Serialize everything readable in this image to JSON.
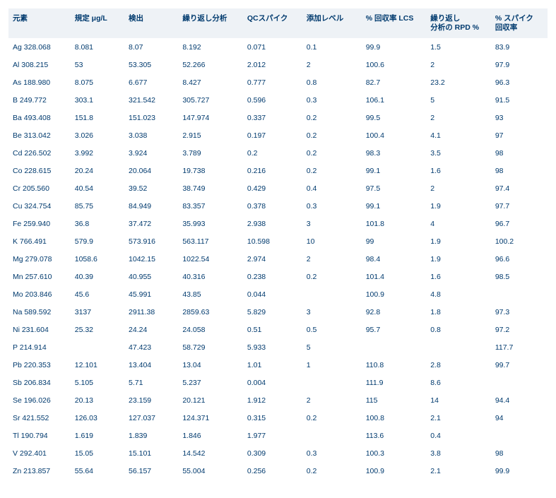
{
  "table": {
    "type": "table",
    "text_color": "#003a6e",
    "header_bg": "#eef2f6",
    "row_bg": "#ffffff",
    "header_fontsize": 10.5,
    "cell_fontsize": 10.5,
    "columns": [
      {
        "label": "元素",
        "width_pct": 11.5
      },
      {
        "label": "規定 μg/L",
        "width_pct": 10
      },
      {
        "label": "検出",
        "width_pct": 10
      },
      {
        "label": "繰り返し分析",
        "width_pct": 12
      },
      {
        "label": "QCスパイク",
        "width_pct": 11
      },
      {
        "label": "添加レベル",
        "width_pct": 11
      },
      {
        "label": "% 回収率 LCS",
        "width_pct": 12
      },
      {
        "label": "繰り返し\n分析の RPD %",
        "width_pct": 12
      },
      {
        "label": "% スパイク\n回収率",
        "width_pct": 10.5
      }
    ],
    "rows": [
      [
        "Ag 328.068",
        "8.081",
        "8.07",
        "8.192",
        "0.071",
        "0.1",
        "99.9",
        "1.5",
        "83.9"
      ],
      [
        "Al 308.215",
        "53",
        "53.305",
        "52.266",
        "2.012",
        "2",
        "100.6",
        "2",
        "97.9"
      ],
      [
        "As 188.980",
        "8.075",
        "6.677",
        "8.427",
        "0.777",
        "0.8",
        "82.7",
        "23.2",
        "96.3"
      ],
      [
        "B 249.772",
        "303.1",
        "321.542",
        "305.727",
        "0.596",
        "0.3",
        "106.1",
        "5",
        "91.5"
      ],
      [
        "Ba 493.408",
        "151.8",
        "151.023",
        "147.974",
        "0.337",
        "0.2",
        "99.5",
        "2",
        "93"
      ],
      [
        "Be 313.042",
        "3.026",
        "3.038",
        "2.915",
        "0.197",
        "0.2",
        "100.4",
        "4.1",
        "97"
      ],
      [
        "Cd 226.502",
        "3.992",
        "3.924",
        "3.789",
        "0.2",
        "0.2",
        "98.3",
        "3.5",
        "98"
      ],
      [
        "Co 228.615",
        "20.24",
        "20.064",
        "19.738",
        "0.216",
        "0.2",
        "99.1",
        "1.6",
        "98"
      ],
      [
        "Cr 205.560",
        "40.54",
        "39.52",
        "38.749",
        "0.429",
        "0.4",
        "97.5",
        "2",
        "97.4"
      ],
      [
        "Cu 324.754",
        "85.75",
        "84.949",
        "83.357",
        "0.378",
        "0.3",
        "99.1",
        "1.9",
        "97.7"
      ],
      [
        "Fe 259.940",
        "36.8",
        "37.472",
        "35.993",
        "2.938",
        "3",
        "101.8",
        "4",
        "96.7"
      ],
      [
        "K 766.491",
        "579.9",
        "573.916",
        "563.117",
        "10.598",
        "10",
        "99",
        "1.9",
        "100.2"
      ],
      [
        "Mg 279.078",
        "1058.6",
        "1042.15",
        "1022.54",
        "2.974",
        "2",
        "98.4",
        "1.9",
        "96.6"
      ],
      [
        "Mn 257.610",
        "40.39",
        "40.955",
        "40.316",
        "0.238",
        "0.2",
        "101.4",
        "1.6",
        "98.5"
      ],
      [
        "Mo 203.846",
        "45.6",
        "45.991",
        "43.85",
        "0.044",
        "",
        "100.9",
        "4.8",
        ""
      ],
      [
        "Na 589.592",
        "3137",
        "2911.38",
        "2859.63",
        "5.829",
        "3",
        "92.8",
        "1.8",
        "97.3"
      ],
      [
        "Ni 231.604",
        "25.32",
        "24.24",
        "24.058",
        "0.51",
        "0.5",
        "95.7",
        "0.8",
        "97.2"
      ],
      [
        "P 214.914",
        "",
        "47.423",
        "58.729",
        "5.933",
        "5",
        "",
        "",
        "117.7"
      ],
      [
        "Pb 220.353",
        "12.101",
        "13.404",
        "13.04",
        "1.01",
        "1",
        "110.8",
        "2.8",
        "99.7"
      ],
      [
        "Sb 206.834",
        "5.105",
        "5.71",
        "5.237",
        "0.004",
        "",
        "111.9",
        "8.6",
        ""
      ],
      [
        "Se 196.026",
        "20.13",
        "23.159",
        "20.121",
        "1.912",
        "2",
        "115",
        "14",
        "94.4"
      ],
      [
        "Sr 421.552",
        "126.03",
        "127.037",
        "124.371",
        "0.315",
        "0.2",
        "100.8",
        "2.1",
        "94"
      ],
      [
        "Tl 190.794",
        "1.619",
        "1.839",
        "1.846",
        "1.977",
        "",
        "113.6",
        "0.4",
        ""
      ],
      [
        "V 292.401",
        "15.05",
        "15.101",
        "14.542",
        "0.309",
        "0.3",
        "100.3",
        "3.8",
        "98"
      ],
      [
        "Zn 213.857",
        "55.64",
        "56.157",
        "55.004",
        "0.256",
        "0.2",
        "100.9",
        "2.1",
        "99.9"
      ]
    ]
  }
}
